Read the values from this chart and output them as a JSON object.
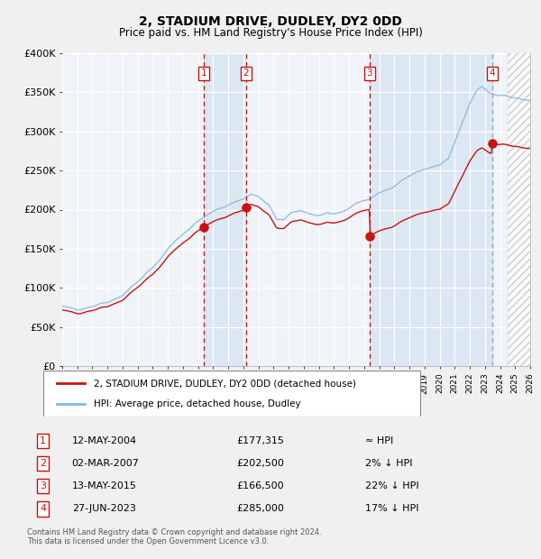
{
  "title1": "2, STADIUM DRIVE, DUDLEY, DY2 0DD",
  "title2": "Price paid vs. HM Land Registry's House Price Index (HPI)",
  "legend1": "2, STADIUM DRIVE, DUDLEY, DY2 0DD (detached house)",
  "legend2": "HPI: Average price, detached house, Dudley",
  "footer": "Contains HM Land Registry data © Crown copyright and database right 2024.\nThis data is licensed under the Open Government Licence v3.0.",
  "sales": [
    {
      "label": "1",
      "date": "12-MAY-2004",
      "year": 2004.36,
      "price": 177315,
      "note": "≈ HPI"
    },
    {
      "label": "2",
      "date": "02-MAR-2007",
      "year": 2007.17,
      "price": 202500,
      "note": "2% ↓ HPI"
    },
    {
      "label": "3",
      "date": "13-MAY-2015",
      "year": 2015.36,
      "price": 166500,
      "note": "22% ↓ HPI"
    },
    {
      "label": "4",
      "date": "27-JUN-2023",
      "year": 2023.49,
      "price": 285000,
      "note": "17% ↓ HPI"
    }
  ],
  "ylim": [
    0,
    400000
  ],
  "xlim_start": 1995.0,
  "xlim_end": 2026.0,
  "fig_bg": "#f0f0f0",
  "plot_bg": "#ffffff",
  "grid_color": "#d0dce8",
  "hpi_color": "#88b8e0",
  "price_color": "#cc1111",
  "sale_marker_color": "#cc1111",
  "hatch_region_start": 2024.5,
  "sale_box_color": "#cc1111",
  "owned_shade_color": "#c8ddf0",
  "owned_shade_alpha": 0.5
}
